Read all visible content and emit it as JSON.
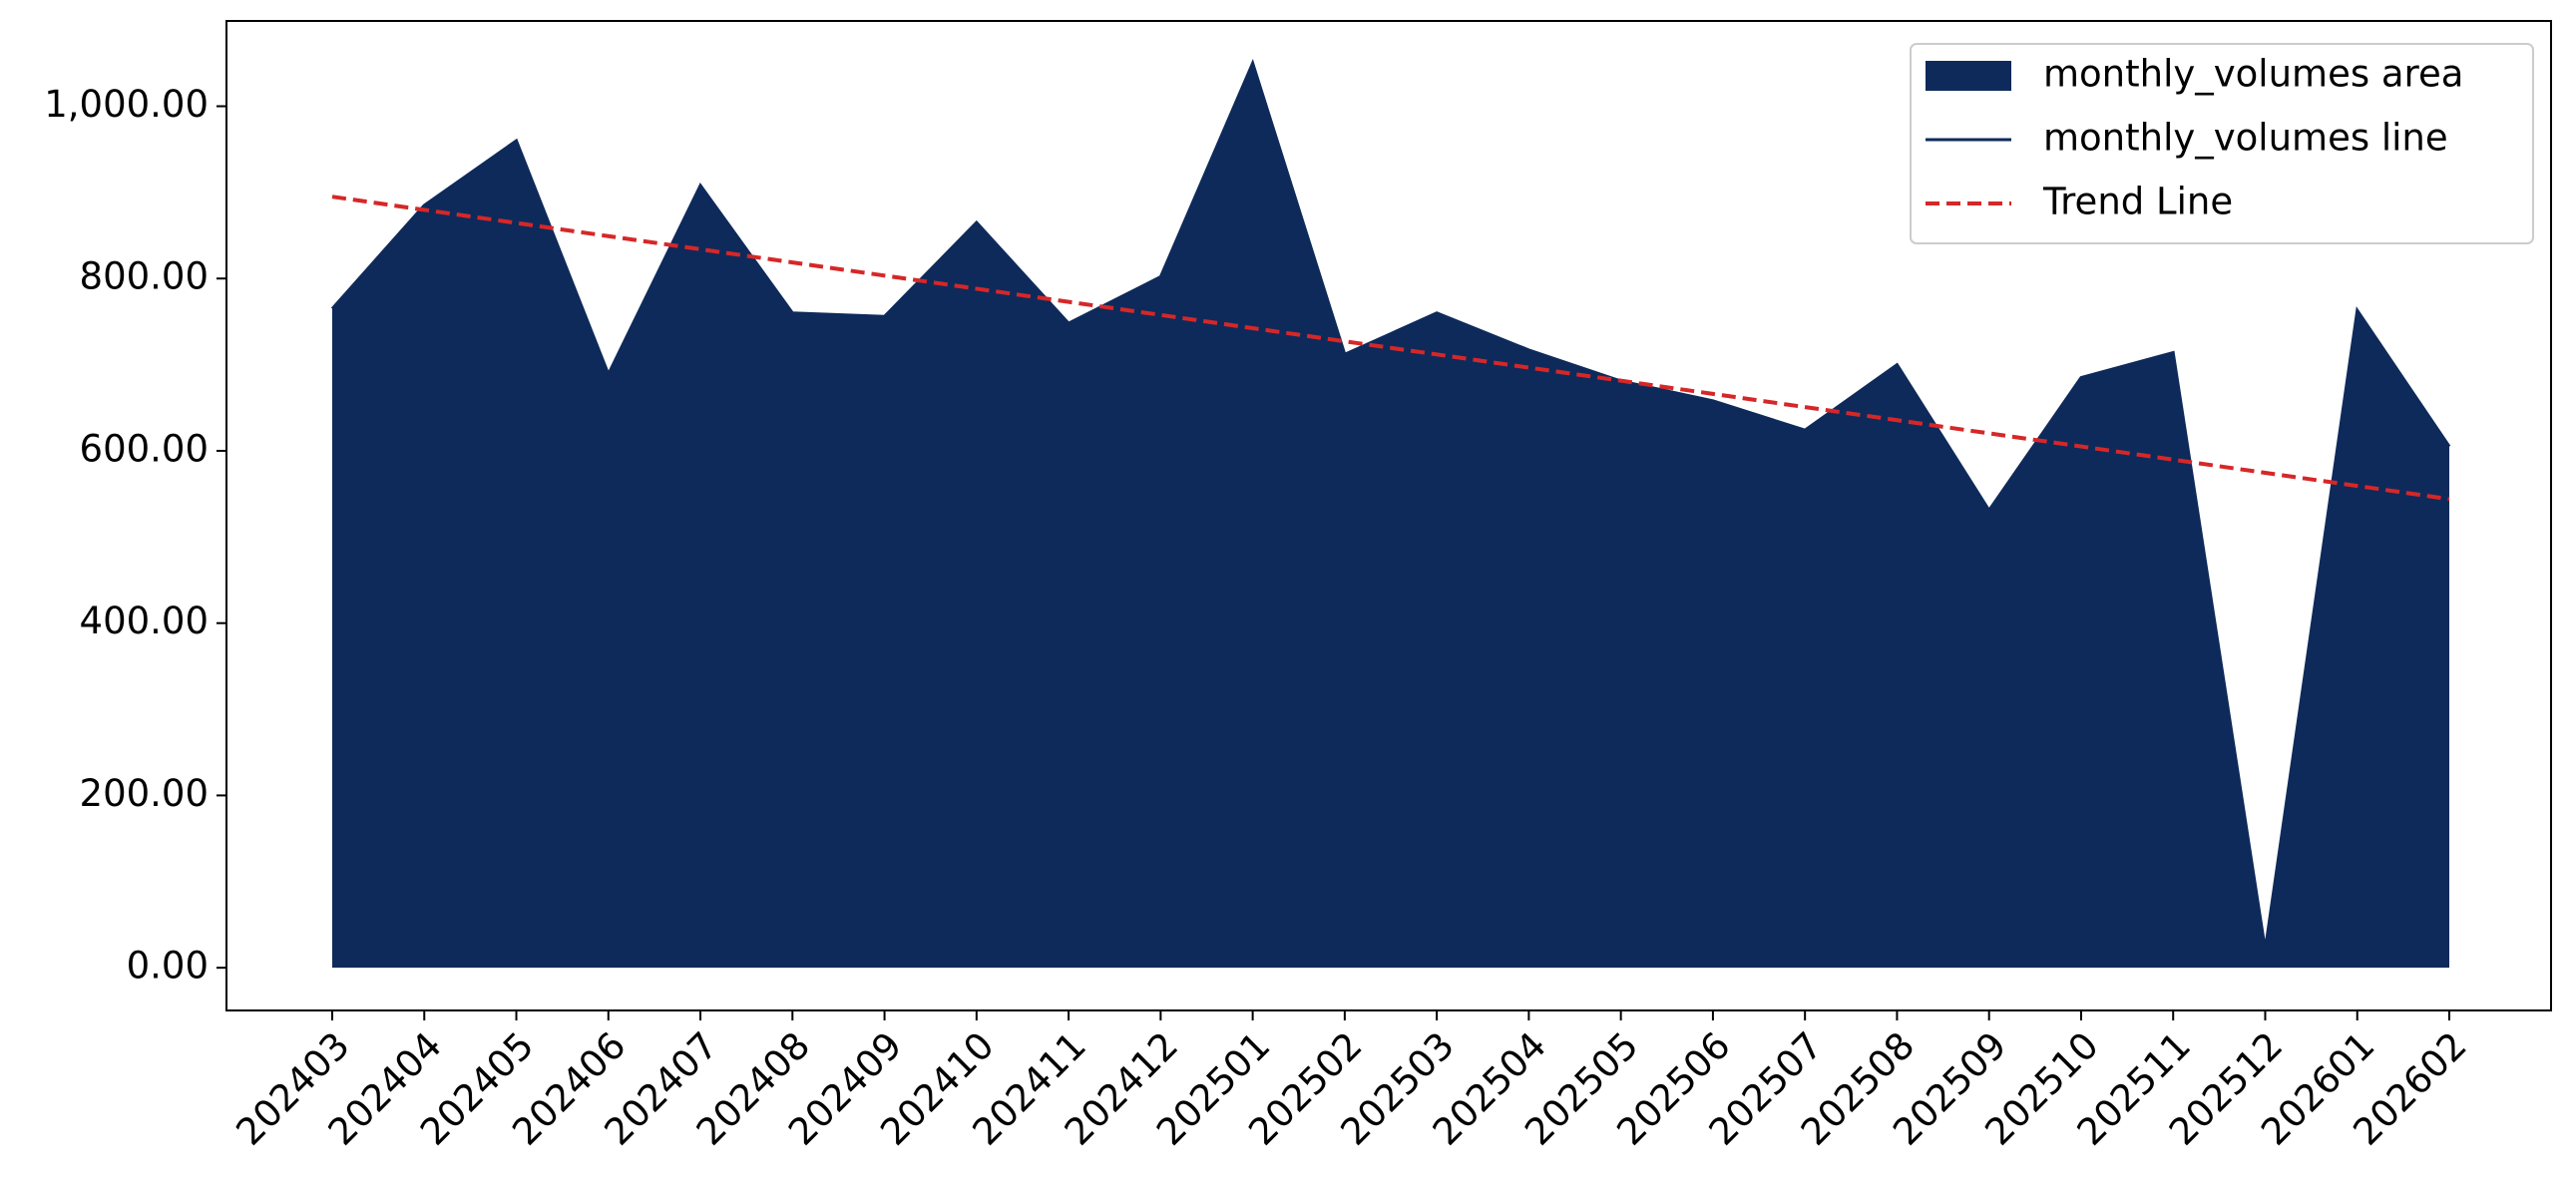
{
  "chart_data": {
    "type": "area",
    "categories": [
      "202403",
      "202404",
      "202405",
      "202406",
      "202407",
      "202408",
      "202409",
      "202410",
      "202411",
      "202412",
      "202501",
      "202502",
      "202503",
      "202504",
      "202505",
      "202506",
      "202507",
      "202508",
      "202509",
      "202510",
      "202511",
      "202512",
      "202601",
      "202602"
    ],
    "series": [
      {
        "name": "monthly_volumes area",
        "color": "#0e2a5a",
        "values": [
          765,
          885,
          960,
          689,
          908,
          760,
          756,
          865,
          748,
          802,
          1050,
          712,
          760,
          717,
          681,
          658,
          624,
          700,
          531,
          685,
          714,
          21,
          763,
          605
        ]
      },
      {
        "name": "monthly_volumes line",
        "color": "#0e2a5a",
        "values": [
          765,
          885,
          960,
          689,
          908,
          760,
          756,
          865,
          748,
          802,
          1050,
          712,
          760,
          717,
          681,
          658,
          624,
          700,
          531,
          685,
          714,
          21,
          763,
          605
        ]
      },
      {
        "name": "Trend Line",
        "color": "#d62728",
        "dashed": true,
        "values": [
          895,
          879.7,
          864.5,
          849.2,
          834,
          818.7,
          803.4,
          788.2,
          772.9,
          757.7,
          742.4,
          727.1,
          711.9,
          696.6,
          681.4,
          666.1,
          650.8,
          635.6,
          620.3,
          605.1,
          589.8,
          574.5,
          559.3,
          544
        ]
      }
    ],
    "ylim": [
      -49.6,
      1099
    ],
    "yticks": [
      {
        "value": 0,
        "label": "0.00"
      },
      {
        "value": 200,
        "label": "200.00"
      },
      {
        "value": 400,
        "label": "400.00"
      },
      {
        "value": 600,
        "label": "600.00"
      },
      {
        "value": 800,
        "label": "800.00"
      },
      {
        "value": 1000,
        "label": "1,000.00"
      }
    ],
    "legend": "upper right"
  }
}
